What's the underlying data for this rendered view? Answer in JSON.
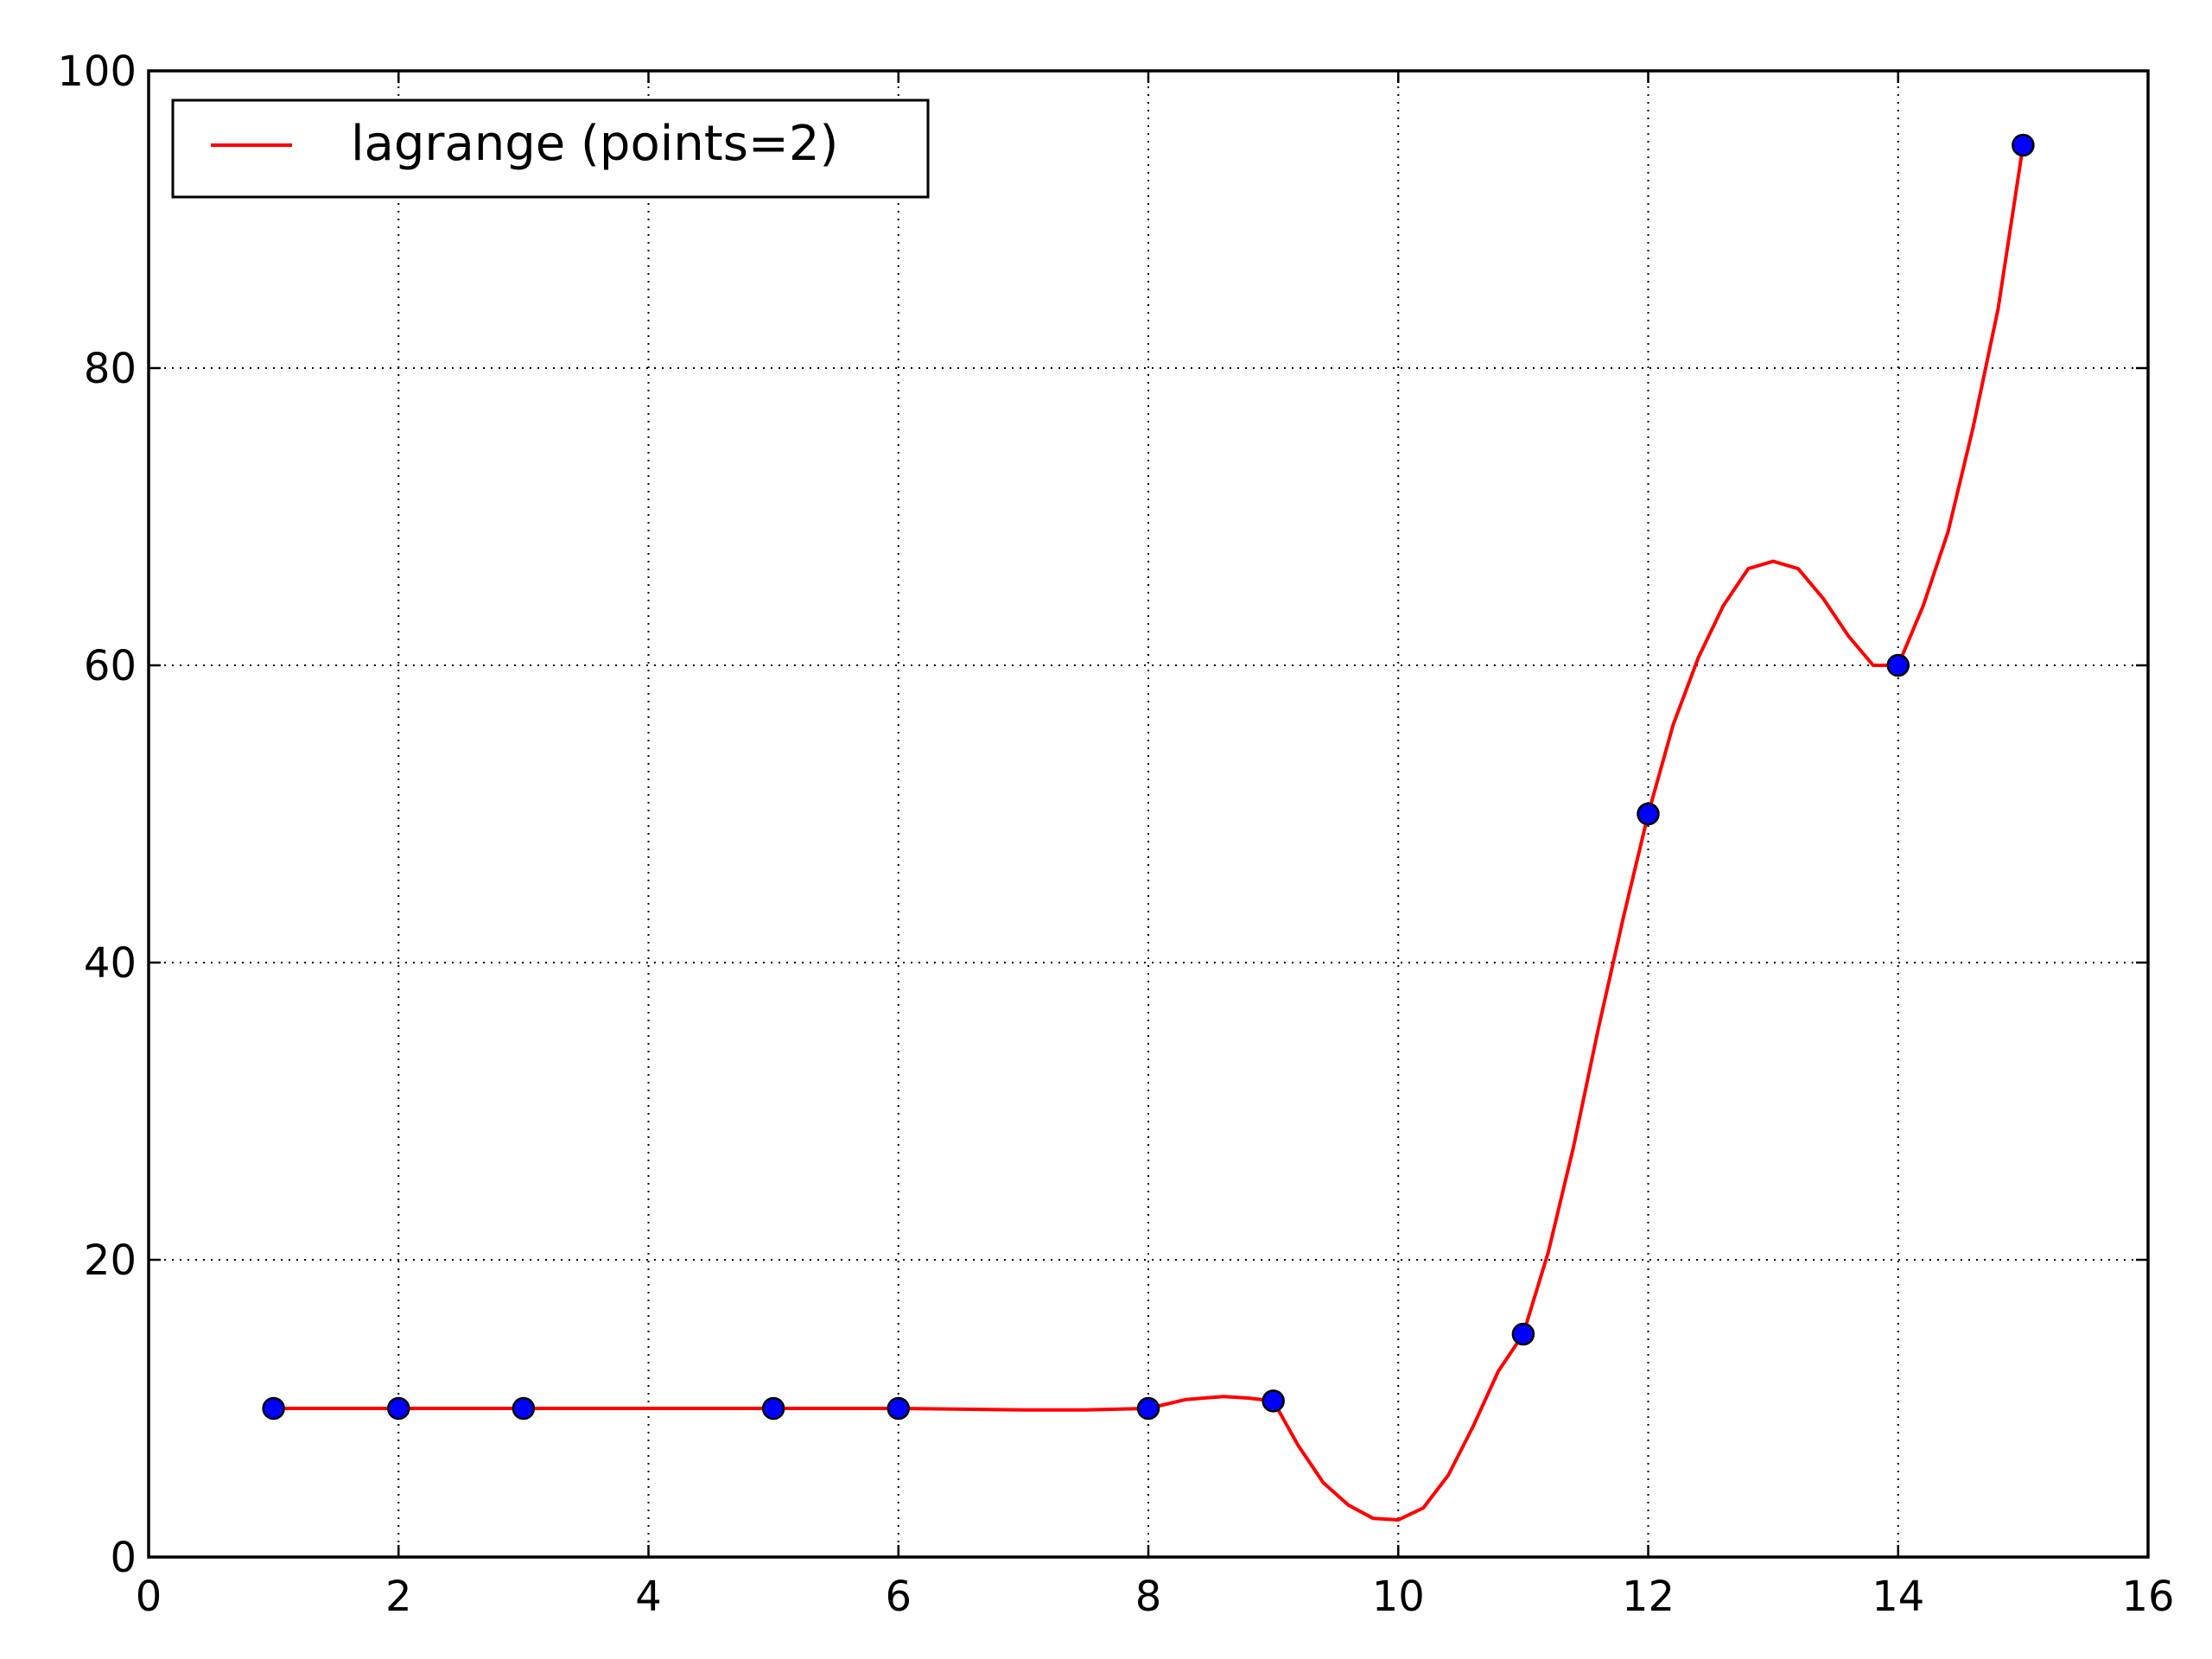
{
  "chart_data": {
    "type": "line",
    "title": "",
    "xlabel": "",
    "ylabel": "",
    "xlim": [
      0,
      16
    ],
    "ylim": [
      0,
      100
    ],
    "xticks": [
      "0",
      "2",
      "4",
      "6",
      "8",
      "10",
      "12",
      "14",
      "16"
    ],
    "yticks": [
      "0",
      "20",
      "40",
      "60",
      "80",
      "100"
    ],
    "grid": true,
    "grid_style": "dotted",
    "legend_position": "top-left",
    "series": [
      {
        "name": "lagrange (points=2)",
        "kind": "line",
        "color": "#ff0000",
        "x": [
          1,
          2,
          3,
          4,
          5,
          6,
          7,
          7.5,
          8,
          8.3,
          8.6,
          8.8,
          9,
          9.2,
          9.4,
          9.6,
          9.8,
          10,
          10.2,
          10.4,
          10.6,
          10.8,
          11,
          11.2,
          11.4,
          11.6,
          11.8,
          12,
          12.2,
          12.4,
          12.6,
          12.8,
          13,
          13.2,
          13.4,
          13.6,
          13.8,
          14,
          14.2,
          14.4,
          14.6,
          14.8,
          15
        ],
        "y": [
          10,
          10,
          10,
          10,
          10,
          10,
          9.9,
          9.9,
          10,
          10.6,
          10.8,
          10.7,
          10.5,
          7.5,
          5,
          3.5,
          2.6,
          2.5,
          3.3,
          5.5,
          8.8,
          12.5,
          15,
          20.5,
          27.5,
          35.5,
          43,
          50,
          56,
          60.5,
          64,
          66.5,
          67,
          66.5,
          64.5,
          62,
          60,
          60,
          64,
          69,
          76,
          84,
          95
        ]
      },
      {
        "name": "",
        "kind": "scatter",
        "color": "#0000ff",
        "edge_color": "#000000",
        "x": [
          1,
          2,
          3,
          5,
          6,
          8,
          9,
          11,
          12,
          14,
          15
        ],
        "y": [
          10,
          10,
          10,
          10,
          10,
          10,
          10.5,
          15,
          50,
          60,
          95
        ]
      }
    ]
  }
}
